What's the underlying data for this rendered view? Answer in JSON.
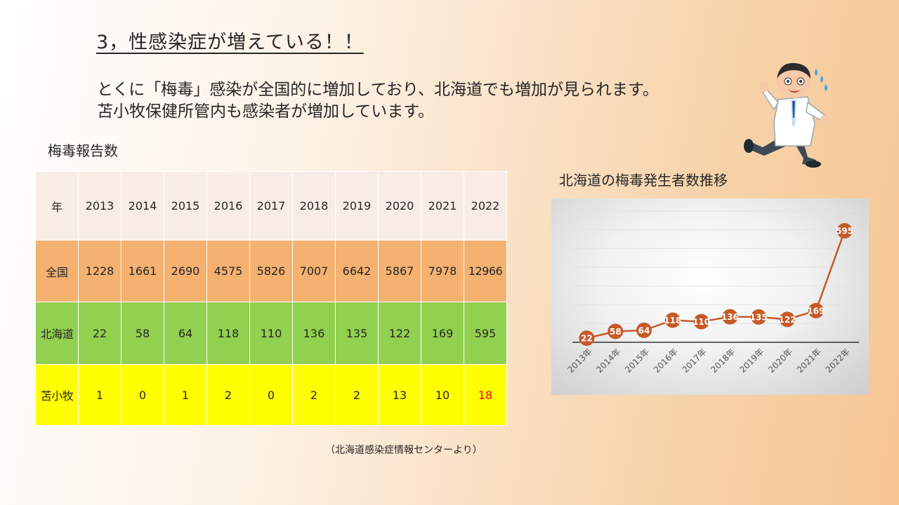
{
  "slide": {
    "title": "3，性感染症が増えている！！",
    "body_lines": [
      "とくに「梅毒」感染が全国的に増加しており、北海道でも増加が見られます。",
      "苫小牧保健所管内も感染者が増加しています。"
    ],
    "table_heading": "梅毒報告数",
    "chart_heading": "北海道の梅毒発生者数推移",
    "source_note": "（北海道感染症情報センターより）"
  },
  "table": {
    "year_label": "年",
    "years": [
      "2013",
      "2014",
      "2015",
      "2016",
      "2017",
      "2018",
      "2019",
      "2020",
      "2021",
      "2022"
    ],
    "rows": [
      {
        "label": "全国",
        "values": [
          "1228",
          "1661",
          "2690",
          "4575",
          "5826",
          "7007",
          "6642",
          "5867",
          "7978",
          "12966"
        ]
      },
      {
        "label": "北海道",
        "values": [
          "22",
          "58",
          "64",
          "118",
          "110",
          "136",
          "135",
          "122",
          "169",
          "595"
        ]
      },
      {
        "label": "苫小牧",
        "values": [
          "1",
          "0",
          "1",
          "2",
          "0",
          "2",
          "2",
          "13",
          "10",
          "18"
        ]
      }
    ]
  },
  "chart_data": {
    "type": "line",
    "categories": [
      "2013年",
      "2014年",
      "2015年",
      "2016年",
      "2017年",
      "2018年",
      "2019年",
      "2020年",
      "2021年",
      "2022年"
    ],
    "series": [
      {
        "values": [
          22,
          58,
          64,
          118,
          110,
          136,
          135,
          122,
          169,
          595
        ]
      }
    ],
    "title": "北海道の梅毒発生者数推移",
    "ylim": [
      0,
      700
    ],
    "grid": true,
    "data_labels": true,
    "line_color": "#c55a28",
    "marker_color": "#c55a28"
  },
  "colors": {
    "year_row": "#f9ece7",
    "national_row": "#f4b170",
    "hokkaido_row": "#92d050",
    "tomakomai_row": "#ffff00",
    "highlight_text": "#ff0000"
  },
  "icons": {
    "illustration": "surprised-doctor-icon"
  }
}
